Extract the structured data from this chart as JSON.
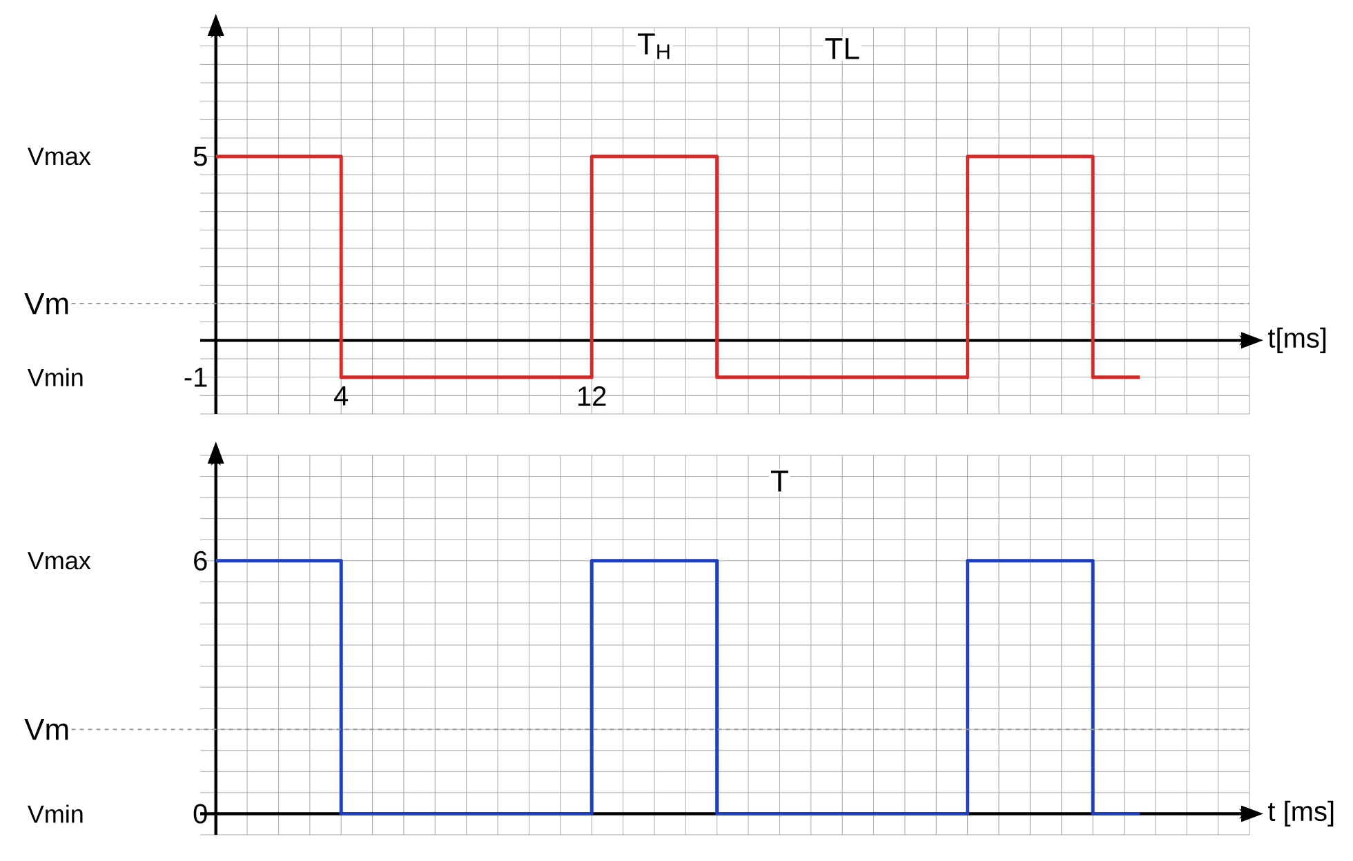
{
  "chart_data": [
    {
      "type": "step",
      "xlabel": "t[ms]",
      "x": [
        0,
        4,
        12,
        16,
        24,
        28,
        29.5
      ],
      "series": [
        {
          "color": "#d42a2a",
          "values": [
            5,
            -1,
            5,
            -1,
            5,
            -1,
            -1
          ]
        }
      ],
      "xlim": [
        -0.5,
        33
      ],
      "ylim": [
        -2,
        8.5
      ],
      "xticks": [
        {
          "value": 0,
          "label": null
        },
        {
          "value": 1,
          "label": null
        },
        {
          "value": 2,
          "label": null
        },
        {
          "value": 3,
          "label": null
        },
        4,
        {
          "value": 5,
          "label": null
        },
        {
          "value": 6,
          "label": null
        },
        {
          "value": 7,
          "label": null
        },
        {
          "value": 8,
          "label": null
        },
        {
          "value": 9,
          "label": null
        },
        {
          "value": 10,
          "label": null
        },
        {
          "value": 11,
          "label": null
        },
        12,
        {
          "value": 13,
          "label": null
        },
        {
          "value": 14,
          "label": null
        },
        {
          "value": 15,
          "label": null
        },
        {
          "value": 16,
          "label": null
        },
        {
          "value": 17,
          "label": null
        },
        {
          "value": 18,
          "label": null
        },
        {
          "value": 19,
          "label": null
        },
        {
          "value": 20,
          "label": null
        },
        {
          "value": 21,
          "label": null
        },
        {
          "value": 22,
          "label": null
        },
        {
          "value": 23,
          "label": null
        },
        {
          "value": 24,
          "label": null
        },
        {
          "value": 25,
          "label": null
        },
        {
          "value": 26,
          "label": null
        },
        {
          "value": 27,
          "label": null
        },
        {
          "value": 28,
          "label": null
        },
        {
          "value": 29,
          "label": null
        },
        {
          "value": 30,
          "label": null
        },
        {
          "value": 31,
          "label": null
        },
        {
          "value": 32,
          "label": null
        },
        {
          "value": 33,
          "label": null
        }
      ],
      "yticks": [
        {
          "value": -2,
          "label": null
        },
        {
          "value": -1.5,
          "label": null
        },
        -1,
        {
          "value": -0.5,
          "label": null
        },
        {
          "value": 0,
          "label": null
        },
        {
          "value": 0.5,
          "label": null
        },
        {
          "value": 1,
          "label": null
        },
        {
          "value": 1.5,
          "label": null
        },
        {
          "value": 2,
          "label": null
        },
        {
          "value": 2.5,
          "label": null
        },
        {
          "value": 3,
          "label": null
        },
        {
          "value": 3.5,
          "label": null
        },
        {
          "value": 4,
          "label": null
        },
        {
          "value": 4.5,
          "label": null
        },
        5,
        {
          "value": 5.5,
          "label": null
        },
        {
          "value": 6,
          "label": null
        },
        {
          "value": 6.5,
          "label": null
        },
        {
          "value": 7,
          "label": null
        },
        {
          "value": 7.5,
          "label": null
        },
        {
          "value": 8,
          "label": null
        },
        {
          "value": 8.5,
          "label": null
        }
      ],
      "grid": true,
      "ref_lines": [
        {
          "axis": "y",
          "value": 1,
          "label": "Vm",
          "color": "#999999",
          "line_style": "dashed"
        }
      ],
      "annotations": [
        "Vmax",
        "Vmin",
        "T$_{H}$",
        "TL"
      ]
    },
    {
      "type": "step",
      "xlabel": "t [ms]",
      "x": [
        0,
        4,
        12,
        16,
        24,
        28,
        29.5
      ],
      "series": [
        {
          "color": "#1f3fbf",
          "values": [
            6,
            0,
            6,
            0,
            6,
            0,
            0
          ]
        }
      ],
      "xlim": [
        -0.5,
        33
      ],
      "ylim": [
        -0.5,
        8.5
      ],
      "xticks": [
        {
          "value": 0,
          "label": null
        },
        {
          "value": 1,
          "label": null
        },
        {
          "value": 2,
          "label": null
        },
        {
          "value": 3,
          "label": null
        },
        {
          "value": 4,
          "label": null
        },
        {
          "value": 5,
          "label": null
        },
        {
          "value": 6,
          "label": null
        },
        {
          "value": 7,
          "label": null
        },
        {
          "value": 8,
          "label": null
        },
        {
          "value": 9,
          "label": null
        },
        {
          "value": 10,
          "label": null
        },
        {
          "value": 11,
          "label": null
        },
        {
          "value": 12,
          "label": null
        },
        {
          "value": 13,
          "label": null
        },
        {
          "value": 14,
          "label": null
        },
        {
          "value": 15,
          "label": null
        },
        {
          "value": 16,
          "label": null
        },
        {
          "value": 17,
          "label": null
        },
        {
          "value": 18,
          "label": null
        },
        {
          "value": 19,
          "label": null
        },
        {
          "value": 20,
          "label": null
        },
        {
          "value": 21,
          "label": null
        },
        {
          "value": 22,
          "label": null
        },
        {
          "value": 23,
          "label": null
        },
        {
          "value": 24,
          "label": null
        },
        {
          "value": 25,
          "label": null
        },
        {
          "value": 26,
          "label": null
        },
        {
          "value": 27,
          "label": null
        },
        {
          "value": 28,
          "label": null
        },
        {
          "value": 29,
          "label": null
        },
        {
          "value": 30,
          "label": null
        },
        {
          "value": 31,
          "label": null
        },
        {
          "value": 32,
          "label": null
        },
        {
          "value": 33,
          "label": null
        }
      ],
      "yticks": [
        {
          "value": -0.5,
          "label": null
        },
        0,
        {
          "value": 0.5,
          "label": null
        },
        {
          "value": 1,
          "label": null
        },
        {
          "value": 1.5,
          "label": null
        },
        {
          "value": 2,
          "label": null
        },
        {
          "value": 2.5,
          "label": null
        },
        {
          "value": 3,
          "label": null
        },
        {
          "value": 3.5,
          "label": null
        },
        {
          "value": 4,
          "label": null
        },
        {
          "value": 4.5,
          "label": null
        },
        {
          "value": 5,
          "label": null
        },
        {
          "value": 5.5,
          "label": null
        },
        6,
        {
          "value": 6.5,
          "label": null
        },
        {
          "value": 7,
          "label": null
        },
        {
          "value": 7.5,
          "label": null
        },
        {
          "value": 8,
          "label": null
        },
        {
          "value": 8.5,
          "label": null
        }
      ],
      "grid": true,
      "tick_labels": "y",
      "ref_lines": [
        {
          "axis": "y",
          "value": 2,
          "label": "Vm",
          "color": "#999999",
          "line_style": "dashed"
        }
      ],
      "annotations": [
        "Vmax",
        "Vmin",
        "T"
      ]
    }
  ]
}
